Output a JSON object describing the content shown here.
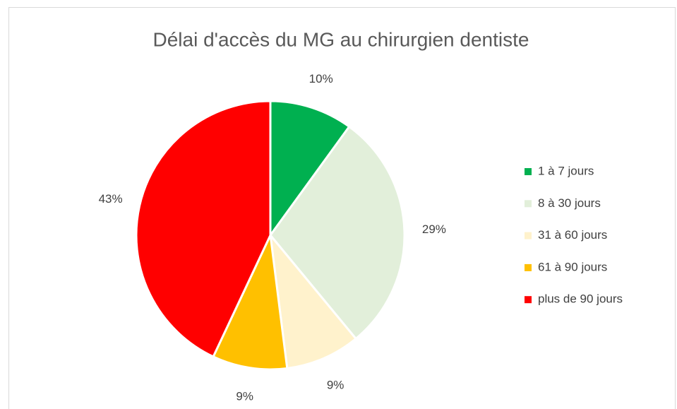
{
  "chart_data": {
    "type": "pie",
    "title": "Délai d'accès du MG au chirurgien dentiste",
    "categories": [
      "1 à 7 jours",
      "8 à 30 jours",
      "31 à 60 jours",
      "61 à 90 jours",
      "plus de 90 jours"
    ],
    "values": [
      10,
      29,
      9,
      9,
      43
    ],
    "value_labels": [
      "10%",
      "29%",
      "9%",
      "9%",
      "43%"
    ],
    "colors": [
      "#00b050",
      "#e2efda",
      "#fff2cc",
      "#ffc000",
      "#ff0000"
    ],
    "legend": "right"
  }
}
